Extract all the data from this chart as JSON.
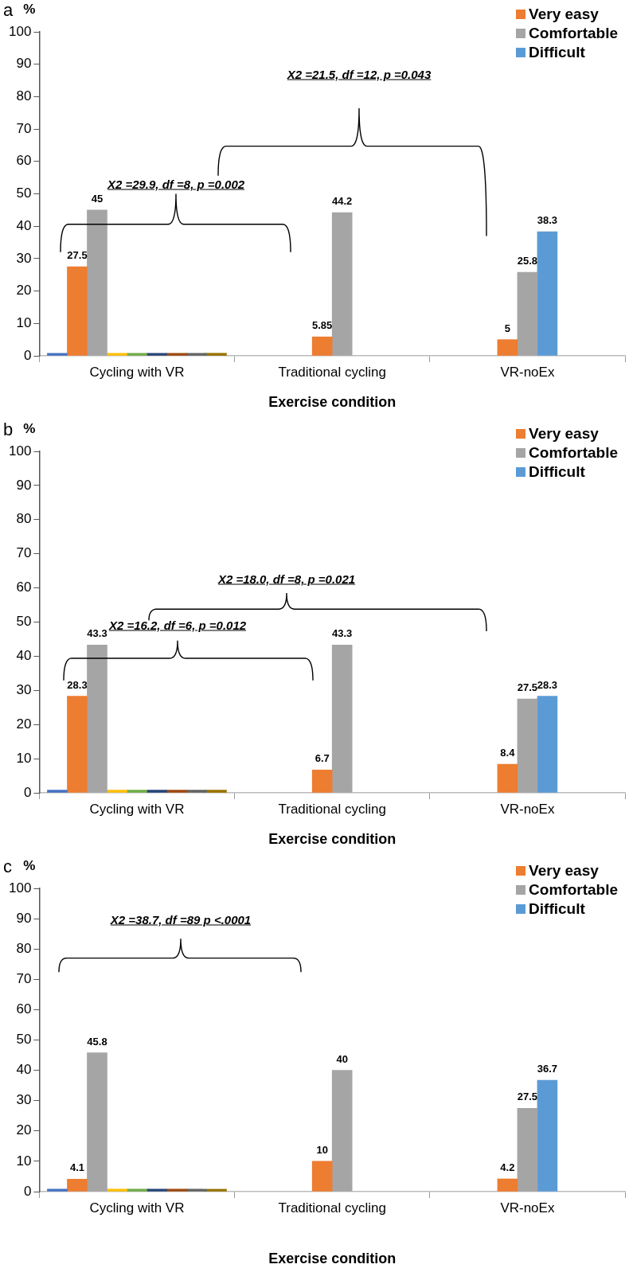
{
  "chart_data": [
    {
      "type": "bar",
      "title": "a",
      "ylabel": "%",
      "xlabel": "Exercise condition",
      "categories": [
        "Cycling with VR",
        "Traditional cycling",
        "VR-noEx"
      ],
      "ylim": [
        0,
        100
      ],
      "yticks": [
        0,
        10,
        20,
        30,
        40,
        50,
        60,
        70,
        80,
        90,
        100
      ],
      "grid": false,
      "legend": "top right",
      "annotations": [
        "X2 =29.9, df =8, p =0.002",
        "X2 =21.5, df =12, p =0.043"
      ],
      "series": [
        {
          "color": "#4472c4",
          "values": [
            0.8,
            null,
            null
          ]
        },
        {
          "name": "Very easy",
          "color": "#ed7d31",
          "values": [
            27.5,
            5.85,
            5
          ],
          "value_labels": [
            "27.5",
            "5.85",
            "5"
          ]
        },
        {
          "name": "Comfortable",
          "color": "#a5a5a5",
          "values": [
            45,
            44.2,
            25.8
          ],
          "value_labels": [
            "45",
            "44.2",
            "25.8"
          ]
        },
        {
          "name": "Difficult",
          "color": "#5b9bd5",
          "values": [
            null,
            null,
            38.3
          ],
          "value_labels": [
            null,
            null,
            "38.3"
          ]
        },
        {
          "color": "#ffc000",
          "values": [
            0.8,
            null,
            null
          ]
        },
        {
          "color": "#70ad47",
          "values": [
            0.8,
            null,
            null
          ]
        },
        {
          "color": "#264478",
          "values": [
            0.8,
            null,
            null
          ]
        },
        {
          "color": "#9e480e",
          "values": [
            0.8,
            null,
            null
          ]
        },
        {
          "color": "#636363",
          "values": [
            0.8,
            null,
            null
          ]
        },
        {
          "color": "#997300",
          "values": [
            0.8,
            null,
            null
          ]
        }
      ]
    },
    {
      "type": "bar",
      "title": "b",
      "ylabel": "%",
      "xlabel": "Exercise condition",
      "categories": [
        "Cycling with VR",
        "Traditional cycling",
        "VR-noEx"
      ],
      "ylim": [
        0,
        100
      ],
      "yticks": [
        0,
        10,
        20,
        30,
        40,
        50,
        60,
        70,
        80,
        90,
        100
      ],
      "grid": false,
      "legend": "top right",
      "annotations": [
        "X2 =16.2, df =6, p =0.012",
        "X2 =18.0, df =8, p =0.021"
      ],
      "series": [
        {
          "color": "#4472c4",
          "values": [
            0.8,
            null,
            null
          ]
        },
        {
          "name": "Very easy",
          "color": "#ed7d31",
          "values": [
            28.3,
            6.7,
            8.4
          ],
          "value_labels": [
            "28.3",
            "6.7",
            "8.4"
          ]
        },
        {
          "name": "Comfortable",
          "color": "#a5a5a5",
          "values": [
            43.3,
            43.3,
            27.5
          ],
          "value_labels": [
            "43.3",
            "43.3",
            "27.5"
          ]
        },
        {
          "name": "Difficult",
          "color": "#5b9bd5",
          "values": [
            null,
            null,
            28.3
          ],
          "value_labels": [
            null,
            null,
            "28.3"
          ]
        },
        {
          "color": "#ffc000",
          "values": [
            0.8,
            null,
            null
          ]
        },
        {
          "color": "#70ad47",
          "values": [
            0.8,
            null,
            null
          ]
        },
        {
          "color": "#264478",
          "values": [
            0.8,
            null,
            null
          ]
        },
        {
          "color": "#9e480e",
          "values": [
            0.8,
            null,
            null
          ]
        },
        {
          "color": "#636363",
          "values": [
            0.8,
            null,
            null
          ]
        },
        {
          "color": "#997300",
          "values": [
            0.8,
            null,
            null
          ]
        }
      ]
    },
    {
      "type": "bar",
      "title": "c",
      "ylabel": "%",
      "xlabel": "Exercise condition",
      "categories": [
        "Cycling with VR",
        "Traditional cycling",
        "VR-noEx"
      ],
      "ylim": [
        0,
        100
      ],
      "yticks": [
        0,
        10,
        20,
        30,
        40,
        50,
        60,
        70,
        80,
        90,
        100
      ],
      "grid": false,
      "legend": "top right",
      "annotations": [
        "X2 =38.7, df =89 p <.0001"
      ],
      "series": [
        {
          "color": "#4472c4",
          "values": [
            0.8,
            null,
            null
          ]
        },
        {
          "name": "Very easy",
          "color": "#ed7d31",
          "values": [
            4.1,
            10,
            4.2
          ],
          "value_labels": [
            "4.1",
            "10",
            "4.2"
          ]
        },
        {
          "name": "Comfortable",
          "color": "#a5a5a5",
          "values": [
            45.8,
            40,
            27.5
          ],
          "value_labels": [
            "45.8",
            "40",
            "27.5"
          ]
        },
        {
          "name": "Difficult",
          "color": "#5b9bd5",
          "values": [
            null,
            null,
            36.7
          ],
          "value_labels": [
            null,
            null,
            "36.7"
          ]
        },
        {
          "color": "#ffc000",
          "values": [
            0.8,
            null,
            null
          ]
        },
        {
          "color": "#70ad47",
          "values": [
            0.8,
            null,
            null
          ]
        },
        {
          "color": "#264478",
          "values": [
            0.8,
            null,
            null
          ]
        },
        {
          "color": "#9e480e",
          "values": [
            0.8,
            null,
            null
          ]
        },
        {
          "color": "#636363",
          "values": [
            0.8,
            null,
            null
          ]
        },
        {
          "color": "#997300",
          "values": [
            0.8,
            null,
            null
          ]
        }
      ]
    }
  ]
}
